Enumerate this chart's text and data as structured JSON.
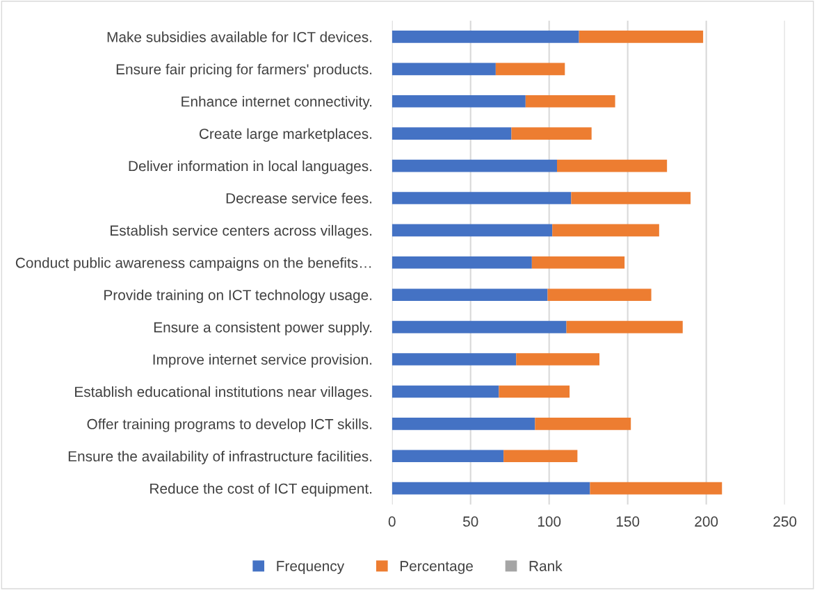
{
  "chart_data": {
    "type": "bar",
    "orientation": "horizontal",
    "stacked": true,
    "categories": [
      "Make subsidies available for ICT devices.",
      "Ensure fair pricing for farmers' products.",
      "Enhance internet connectivity.",
      "Create large marketplaces.",
      "Deliver information in local languages.",
      "Decrease service fees.",
      "Establish service centers across villages.",
      "Conduct public awareness campaigns on the benefits…",
      "Provide training on ICT technology usage.",
      "Ensure a consistent power supply.",
      "Improve internet service provision.",
      "Establish educational institutions near villages.",
      "Offer training programs to develop ICT skills.",
      "Ensure the availability of infrastructure facilities.",
      "Reduce the cost of ICT equipment."
    ],
    "series": [
      {
        "name": "Frequency",
        "color": "#4472c4",
        "values": [
          119,
          66,
          85,
          76,
          105,
          114,
          102,
          89,
          99,
          111,
          79,
          68,
          91,
          71,
          126
        ]
      },
      {
        "name": "Percentage",
        "color": "#ed7d31",
        "values": [
          79,
          44,
          57,
          51,
          70,
          76,
          68,
          59,
          66,
          74,
          53,
          45,
          61,
          47,
          84
        ]
      },
      {
        "name": "Rank",
        "color": "#a5a5a5",
        "values": [
          null,
          null,
          null,
          null,
          null,
          null,
          null,
          null,
          null,
          null,
          null,
          null,
          null,
          null,
          null
        ]
      }
    ],
    "xlim": [
      0,
      250
    ],
    "xticks": [
      0,
      50,
      100,
      150,
      200,
      250
    ],
    "grid": "x",
    "legend": "bottom"
  }
}
